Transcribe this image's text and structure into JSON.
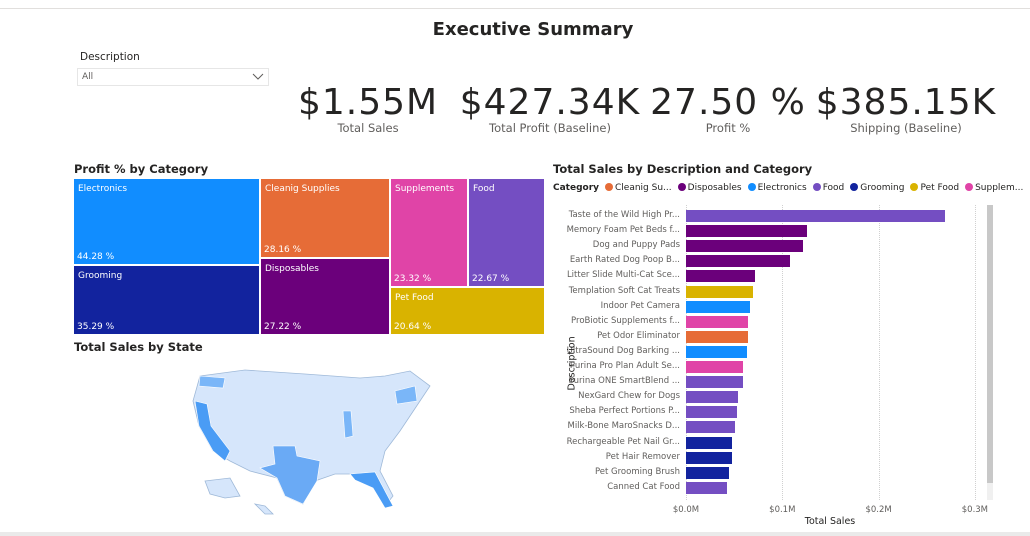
{
  "title": "Executive Summary",
  "slicer": {
    "label": "Description",
    "value": "All"
  },
  "kpis": [
    {
      "value": "$1.55M",
      "label": "Total Sales"
    },
    {
      "value": "$427.34K",
      "label": "Total Profit (Baseline)"
    },
    {
      "value": "27.50 %",
      "label": "Profit %"
    },
    {
      "value": "$385.15K",
      "label": "Shipping (Baseline)"
    }
  ],
  "treemap": {
    "title": "Profit % by Category",
    "tiles": [
      {
        "name": "Electronics",
        "value": "44.28 %",
        "color": "#118DFF"
      },
      {
        "name": "Grooming",
        "value": "35.29 %",
        "color": "#12239E"
      },
      {
        "name": "Cleanig Supplies",
        "value": "28.16 %",
        "color": "#E66C37"
      },
      {
        "name": "Disposables",
        "value": "27.22 %",
        "color": "#6B007B"
      },
      {
        "name": "Supplements",
        "value": "23.32 %",
        "color": "#E044A7"
      },
      {
        "name": "Food",
        "value": "22.67 %",
        "color": "#744EC2"
      },
      {
        "name": "Pet Food",
        "value": "20.64 %",
        "color": "#D9B300"
      }
    ]
  },
  "map": {
    "title": "Total Sales by State"
  },
  "chart_data": {
    "type": "bar",
    "orientation": "horizontal",
    "title": "Total Sales by Description and Category",
    "xlabel": "Total Sales",
    "ylabel": "Description",
    "xlim": [
      0,
      0.3
    ],
    "xticks": [
      "$0.0M",
      "$0.1M",
      "$0.2M",
      "$0.3M"
    ],
    "legend_title": "Category",
    "legend": [
      {
        "name": "Cleanig Su...",
        "color": "#E66C37"
      },
      {
        "name": "Disposables",
        "color": "#6B007B"
      },
      {
        "name": "Electronics",
        "color": "#118DFF"
      },
      {
        "name": "Food",
        "color": "#744EC2"
      },
      {
        "name": "Grooming",
        "color": "#12239E"
      },
      {
        "name": "Pet Food",
        "color": "#D9B300"
      },
      {
        "name": "Supplem...",
        "color": "#E044A7"
      }
    ],
    "bars": [
      {
        "label": "Taste of the Wild High Pr...",
        "value": 0.269,
        "color": "#744EC2"
      },
      {
        "label": "Memory Foam Pet Beds f...",
        "value": 0.126,
        "color": "#6B007B"
      },
      {
        "label": "Dog and Puppy Pads",
        "value": 0.121,
        "color": "#6B007B"
      },
      {
        "label": "Earth Rated Dog Poop B...",
        "value": 0.108,
        "color": "#6B007B"
      },
      {
        "label": "Litter Slide Multi-Cat Sce...",
        "value": 0.072,
        "color": "#6B007B"
      },
      {
        "label": "Templation Soft Cat Treats",
        "value": 0.07,
        "color": "#D9B300"
      },
      {
        "label": "Indoor Pet Camera",
        "value": 0.066,
        "color": "#118DFF"
      },
      {
        "label": "ProBiotic Supplements f...",
        "value": 0.064,
        "color": "#E044A7"
      },
      {
        "label": "Pet Odor Eliminator",
        "value": 0.064,
        "color": "#E66C37"
      },
      {
        "label": "UltraSound Dog Barking ...",
        "value": 0.063,
        "color": "#118DFF"
      },
      {
        "label": "Purina Pro Plan Adult Se...",
        "value": 0.059,
        "color": "#E044A7"
      },
      {
        "label": "Purina ONE SmartBlend ...",
        "value": 0.059,
        "color": "#744EC2"
      },
      {
        "label": "NexGard Chew for Dogs",
        "value": 0.054,
        "color": "#744EC2"
      },
      {
        "label": "Sheba Perfect Portions P...",
        "value": 0.053,
        "color": "#744EC2"
      },
      {
        "label": "Milk-Bone MaroSnacks D...",
        "value": 0.051,
        "color": "#744EC2"
      },
      {
        "label": "Rechargeable Pet Nail Gr...",
        "value": 0.048,
        "color": "#12239E"
      },
      {
        "label": "Pet Hair Remover",
        "value": 0.048,
        "color": "#12239E"
      },
      {
        "label": "Pet Grooming Brush",
        "value": 0.045,
        "color": "#12239E"
      },
      {
        "label": "Canned Cat Food",
        "value": 0.043,
        "color": "#744EC2"
      }
    ]
  }
}
